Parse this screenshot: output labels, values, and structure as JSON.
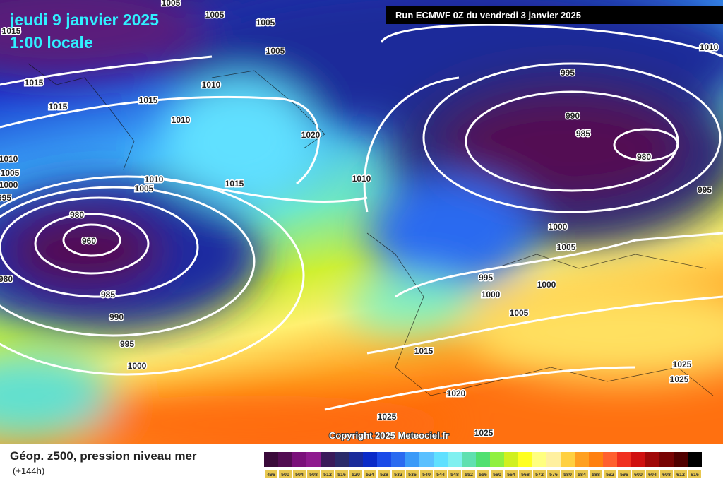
{
  "header": {
    "date": "jeudi 9 janvier 2025",
    "time": "1:00 locale",
    "run": "Run ECMWF 0Z du vendredi 3 janvier 2025"
  },
  "isobar_labels": [
    1005,
    1005,
    1005,
    1015,
    1005,
    1010,
    995,
    1015,
    1010,
    1015,
    1015,
    1010,
    990,
    985,
    1020,
    980,
    1010,
    1005,
    1010,
    1005,
    1015,
    1000,
    1010,
    995,
    995,
    980,
    1000,
    960,
    1005,
    980,
    995,
    1000,
    1000,
    985,
    1005,
    990,
    995,
    1015,
    1000,
    1025,
    1025,
    1020,
    1025,
    1025
  ],
  "copyright": "Copyright 2025 Meteociel.fr",
  "legend": {
    "title": "Géop. z500, pression niveau mer",
    "subtitle": "(+144h)",
    "scale": [
      {
        "value": 496,
        "color": "#3a0a3a"
      },
      {
        "value": 500,
        "color": "#520c52"
      },
      {
        "value": 504,
        "color": "#7a107a"
      },
      {
        "value": 508,
        "color": "#8e1a8e"
      },
      {
        "value": 512,
        "color": "#3a1a5a"
      },
      {
        "value": 516,
        "color": "#2a2a6a"
      },
      {
        "value": 520,
        "color": "#1a2a9a"
      },
      {
        "value": 524,
        "color": "#0a2ac8"
      },
      {
        "value": 528,
        "color": "#1a4ae8"
      },
      {
        "value": 532,
        "color": "#2a6af0"
      },
      {
        "value": 536,
        "color": "#3a9af8"
      },
      {
        "value": 540,
        "color": "#5ac0ff"
      },
      {
        "value": 544,
        "color": "#60e0ff"
      },
      {
        "value": 548,
        "color": "#80f0f0"
      },
      {
        "value": 552,
        "color": "#60e0b0"
      },
      {
        "value": 556,
        "color": "#50e070"
      },
      {
        "value": 560,
        "color": "#90f040"
      },
      {
        "value": 564,
        "color": "#d0f020"
      },
      {
        "value": 568,
        "color": "#ffff20"
      },
      {
        "value": 572,
        "color": "#ffff80"
      },
      {
        "value": 576,
        "color": "#fff0a0"
      },
      {
        "value": 580,
        "color": "#ffd040"
      },
      {
        "value": 584,
        "color": "#ffa020"
      },
      {
        "value": 588,
        "color": "#ff8010"
      },
      {
        "value": 592,
        "color": "#ff6030"
      },
      {
        "value": 596,
        "color": "#f03020"
      },
      {
        "value": 600,
        "color": "#d01010"
      },
      {
        "value": 604,
        "color": "#a00808"
      },
      {
        "value": 608,
        "color": "#780404"
      },
      {
        "value": 612,
        "color": "#500000"
      },
      {
        "value": 616,
        "color": "#000000"
      }
    ]
  }
}
